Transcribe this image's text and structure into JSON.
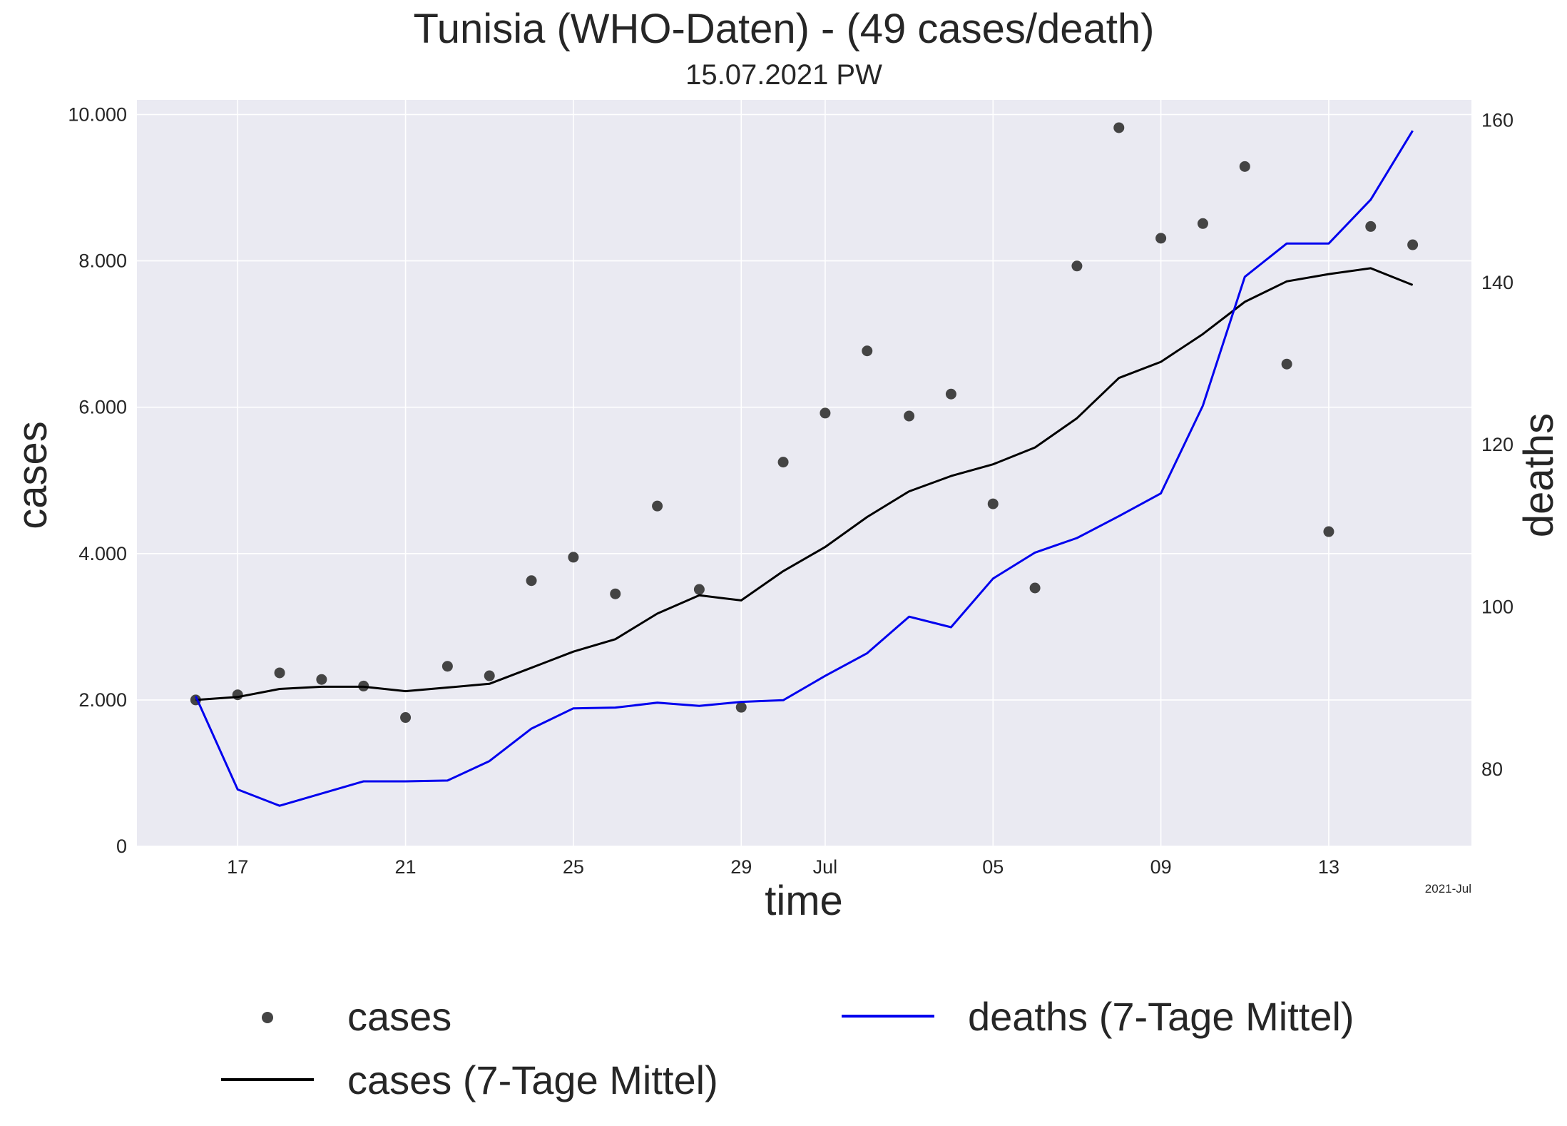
{
  "chart_data": {
    "type": "line",
    "title": "Tunisia (WHO-Daten) - (49 cases/death)",
    "subtitle": "15.07.2021 PW",
    "xlabel": "time",
    "ylabel_left": "cases",
    "ylabel_right": "deaths",
    "x_offset_label": "2021-Jul",
    "x_tick_labels": [
      {
        "date": "2021-06-17",
        "label": "17"
      },
      {
        "date": "2021-06-21",
        "label": "21"
      },
      {
        "date": "2021-06-25",
        "label": "25"
      },
      {
        "date": "2021-06-29",
        "label": "29"
      },
      {
        "date": "2021-07-01",
        "label": "Jul"
      },
      {
        "date": "2021-07-05",
        "label": "05"
      },
      {
        "date": "2021-07-09",
        "label": "09"
      },
      {
        "date": "2021-07-13",
        "label": "13"
      }
    ],
    "y_left_ticks": [
      {
        "value": 0,
        "label": "0"
      },
      {
        "value": 2000,
        "label": "2.000"
      },
      {
        "value": 4000,
        "label": "4.000"
      },
      {
        "value": 6000,
        "label": "6.000"
      },
      {
        "value": 8000,
        "label": "8.000"
      },
      {
        "value": 10000,
        "label": "10.000"
      }
    ],
    "y_right_ticks": [
      {
        "value": 80,
        "label": "80"
      },
      {
        "value": 100,
        "label": "100"
      },
      {
        "value": 120,
        "label": "120"
      },
      {
        "value": 140,
        "label": "140"
      },
      {
        "value": 160,
        "label": "160"
      }
    ],
    "xlim": [
      "2021-06-14T14:24",
      "2021-07-16T09:36"
    ],
    "ylim_left": [
      0,
      10200
    ],
    "ylim_right": [
      70.5,
      162.5
    ],
    "grid": true,
    "legend_position": "bottom",
    "x": [
      "2021-06-16",
      "2021-06-17",
      "2021-06-18",
      "2021-06-19",
      "2021-06-20",
      "2021-06-21",
      "2021-06-22",
      "2021-06-23",
      "2021-06-24",
      "2021-06-25",
      "2021-06-26",
      "2021-06-27",
      "2021-06-28",
      "2021-06-29",
      "2021-06-30",
      "2021-07-01",
      "2021-07-02",
      "2021-07-03",
      "2021-07-04",
      "2021-07-05",
      "2021-07-06",
      "2021-07-07",
      "2021-07-08",
      "2021-07-09",
      "2021-07-10",
      "2021-07-11",
      "2021-07-12",
      "2021-07-13",
      "2021-07-14",
      "2021-07-15"
    ],
    "series": [
      {
        "name": "cases",
        "axis": "left",
        "style": "points",
        "color": "#444444",
        "values": [
          2000,
          2070,
          2370,
          2280,
          2190,
          1760,
          2460,
          2330,
          3630,
          3950,
          3450,
          4650,
          3510,
          1900,
          5250,
          5920,
          6770,
          5880,
          6180,
          4680,
          3530,
          7930,
          9820,
          8310,
          8510,
          9290,
          6590,
          4300,
          8470,
          8220
        ]
      },
      {
        "name": "cases (7-Tage Mittel)",
        "axis": "left",
        "style": "line",
        "color": "#000000",
        "values": [
          2000,
          2040,
          2150,
          2180,
          2180,
          2120,
          2170,
          2220,
          2440,
          2660,
          2830,
          3180,
          3430,
          3360,
          3760,
          4090,
          4500,
          4850,
          5060,
          5220,
          5450,
          5850,
          6400,
          6620,
          7000,
          7440,
          7720,
          7820,
          7900,
          7670
        ]
      },
      {
        "name": "deaths (7-Tage Mittel)",
        "axis": "right",
        "style": "line",
        "color": "#0000ee",
        "values": [
          89,
          77.5,
          75.5,
          77,
          78.5,
          78.5,
          78.6,
          81,
          85,
          87.5,
          87.6,
          88.2,
          87.8,
          88.3,
          88.5,
          91.5,
          94.3,
          98.8,
          97.5,
          103.5,
          106.7,
          108.5,
          111.2,
          114,
          124.8,
          140.7,
          144.8,
          144.8,
          150.2,
          158.7
        ]
      }
    ]
  }
}
